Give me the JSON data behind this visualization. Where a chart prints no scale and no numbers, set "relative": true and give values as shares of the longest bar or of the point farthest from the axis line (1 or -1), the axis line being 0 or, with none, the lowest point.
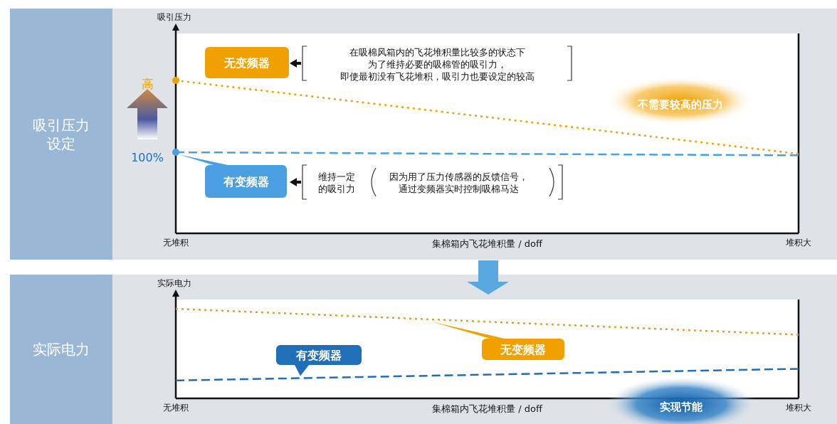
{
  "chart_data": [
    {
      "type": "line",
      "title": "吸引压力设定",
      "ylabel": "吸引压力",
      "xlabel": "集棉箱内飞花堆积量 / doff",
      "relative": true,
      "categories": [
        "无堆积",
        "堆积大"
      ],
      "series": [
        {
          "name": "无变频器",
          "color": "#f0a000",
          "values": [
            1,
            0.52
          ],
          "line_style": "dotted"
        },
        {
          "name": "有变频器",
          "color": "#4a9fe0",
          "values": [
            0.53,
            0.51
          ],
          "line_style": "dashed"
        }
      ],
      "annotations": [
        "高",
        "100%",
        "在吸棉风箱内的飞花堆积量比较多的状态下为了维持必要的吸棉管的吸引力，即使最初没有飞花堆积，吸引力也要设定的较高",
        "维持一定的吸引力",
        "因为用了压力传感器的反馈信号，通过变频器实时控制吸棉马达",
        "不需要较高的压力"
      ]
    },
    {
      "type": "line",
      "title": "实际电力",
      "ylabel": "实际电力",
      "xlabel": "集棉箱内飞花堆积量 / doff",
      "relative": true,
      "categories": [
        "无堆积",
        "堆积大"
      ],
      "series": [
        {
          "name": "无变频器",
          "color": "#f0a000",
          "values": [
            1,
            0.71
          ],
          "line_style": "dotted"
        },
        {
          "name": "有变频器",
          "color": "#1f6fb8",
          "values": [
            0.2,
            0.33
          ],
          "line_style": "dashed"
        }
      ],
      "annotations": [
        "实现节能"
      ]
    }
  ]
}
